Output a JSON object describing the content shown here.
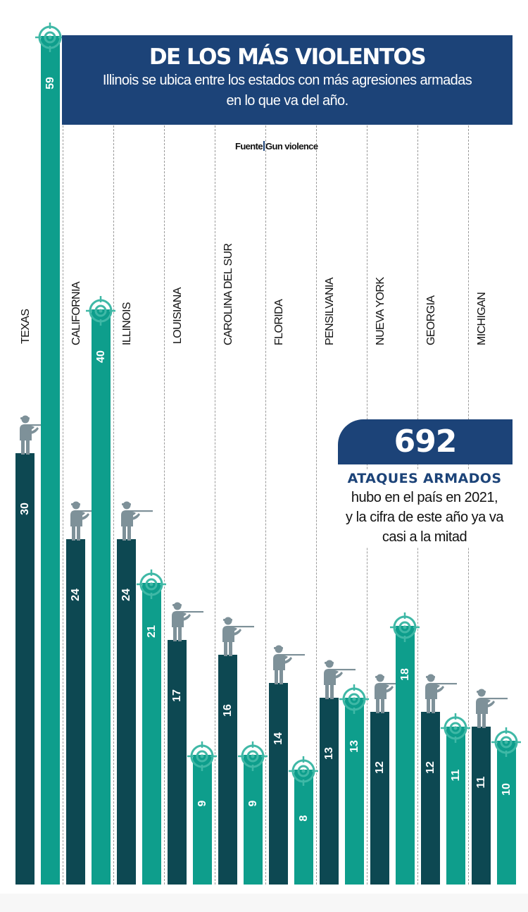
{
  "header": {
    "title": "DE LOS MÁS VIOLENTOS",
    "subtitle_line1": "Illinois se ubica entre los estados con más agresiones armadas",
    "subtitle_line2": "en lo que va del año."
  },
  "source": {
    "label": "Fuente",
    "name": "Gun violence"
  },
  "callout": {
    "number": "692",
    "headline": "ATAQUES ARMADOS",
    "line1": "hubo en el país en 2021,",
    "line2": "y la cifra de este año ya va",
    "line3": "casi a la mitad"
  },
  "colors": {
    "header_blue": "#1c4378",
    "dark_bar": "#0d4852",
    "teal_bar": "#0e9e8c",
    "shooter_gray": "#7e9199",
    "target_teal": "#3fb8a6"
  },
  "chart_data": {
    "type": "bar",
    "title": "DE LOS MÁS VIOLENTOS",
    "subtitle": "Illinois se ubica entre los estados con más agresiones armadas en lo que va del año.",
    "source": "Fuente | Gun violence",
    "categories": [
      "TEXAS",
      "CALIFORNIA",
      "ILLINOIS",
      "LOUISIANA",
      "CAROLINA DEL SUR",
      "FLORIDA",
      "PENSILVANIA",
      "NUEVA YORK",
      "GEORGIA",
      "MICHIGAN"
    ],
    "series": [
      {
        "name": "shooter-icon series (dark)",
        "icon": "shooter",
        "color": "#0d4852",
        "values": [
          30,
          24,
          24,
          17,
          16,
          14,
          13,
          12,
          12,
          11
        ]
      },
      {
        "name": "target-icon series (teal)",
        "icon": "target",
        "color": "#0e9e8c",
        "values": [
          59,
          40,
          21,
          9,
          9,
          8,
          13,
          18,
          11,
          10
        ]
      }
    ],
    "xlabel": "",
    "ylabel": "",
    "ylim": [
      0,
      60
    ],
    "grid": "vertical dashed separators between states",
    "annotation": "692 ATAQUES ARMADOS hubo en el país en 2021, y la cifra de este año ya va casi a la mitad"
  }
}
